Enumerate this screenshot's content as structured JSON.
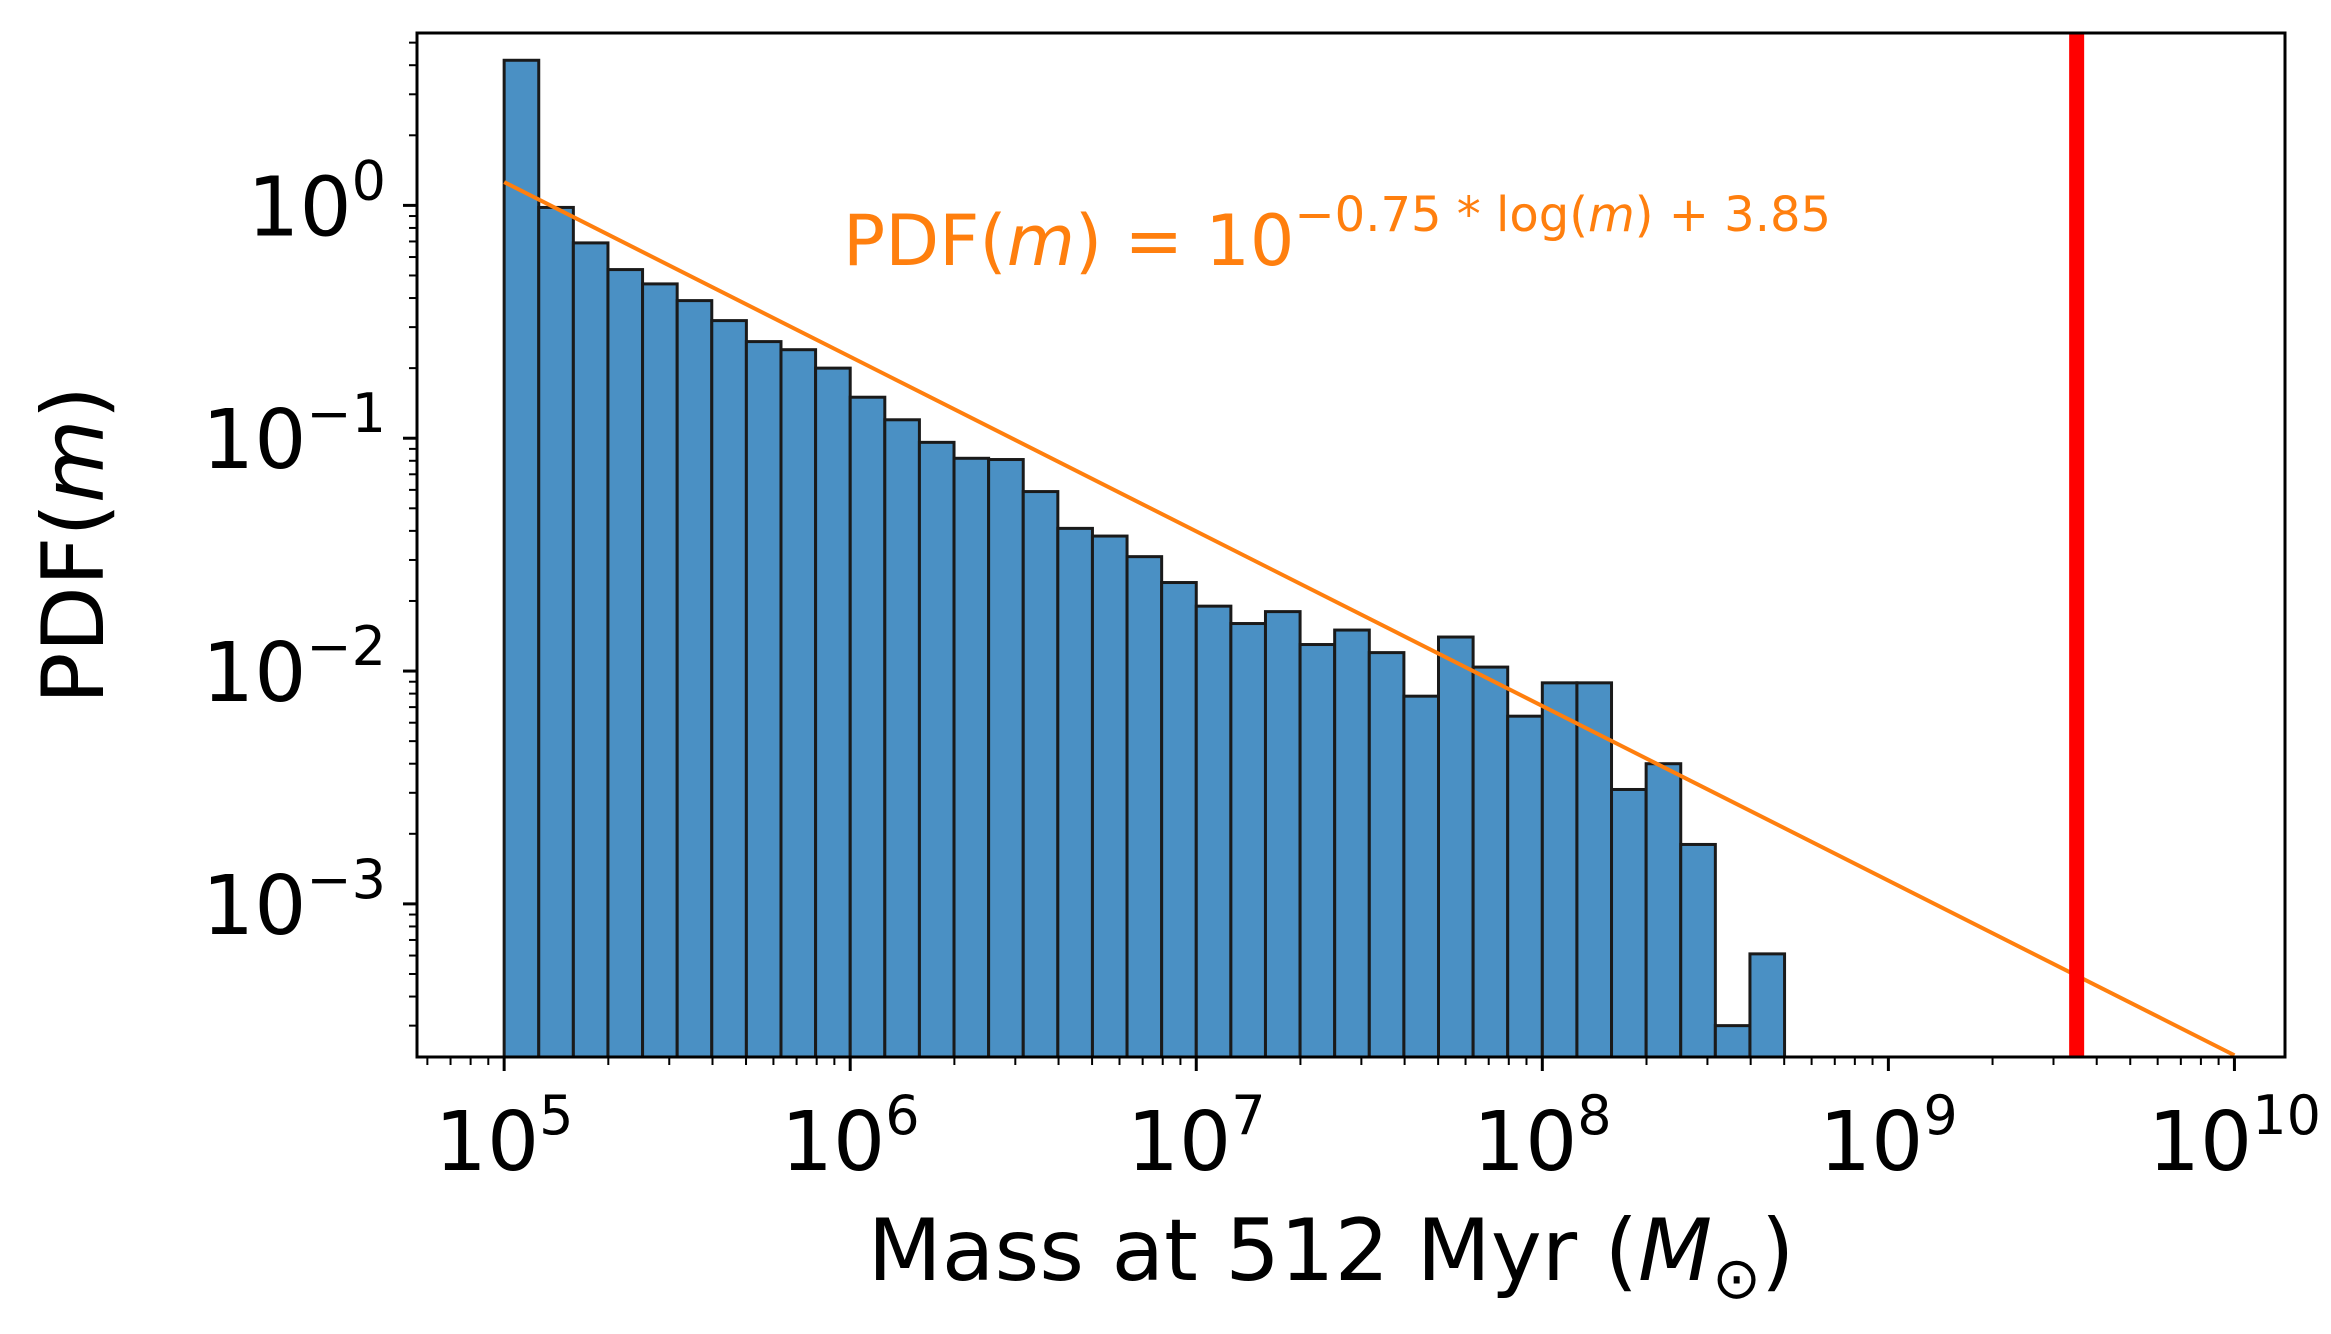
{
  "chart_data": {
    "type": "bar",
    "title": "",
    "xlabel": "Mass at 512 Myr (M⊙)",
    "xlabel_parts": {
      "main": "Mass at 512 Myr (",
      "symbol": "M",
      "subscript": "⊙",
      "close": ")"
    },
    "ylabel": "PDF(m)",
    "ylabel_parts": {
      "main": "PDF(",
      "var": "m",
      "close": ")"
    },
    "x_scale": "log",
    "y_scale": "log",
    "xlim": [
      56000,
      14000000000
    ],
    "ylim": [
      0.00022,
      5.5
    ],
    "grid": false,
    "x_ticks": [
      {
        "value": 100000,
        "base": "10",
        "exp": "5"
      },
      {
        "value": 1000000,
        "base": "10",
        "exp": "6"
      },
      {
        "value": 10000000,
        "base": "10",
        "exp": "7"
      },
      {
        "value": 100000000,
        "base": "10",
        "exp": "8"
      },
      {
        "value": 1000000000,
        "base": "10",
        "exp": "9"
      },
      {
        "value": 10000000000,
        "base": "10",
        "exp": "10"
      }
    ],
    "y_ticks": [
      {
        "value": 1,
        "base": "10",
        "exp": "0"
      },
      {
        "value": 0.1,
        "base": "10",
        "exp": "−1"
      },
      {
        "value": 0.01,
        "base": "10",
        "exp": "−2"
      },
      {
        "value": 0.001,
        "base": "10",
        "exp": "−3"
      }
    ],
    "histogram": {
      "log_bin_start": 5.0,
      "log_bin_width": 0.1,
      "color": "#4a90c4",
      "edge_color": "#1a1a1a",
      "values": [
        4.2,
        0.98,
        0.69,
        0.53,
        0.46,
        0.39,
        0.32,
        0.26,
        0.24,
        0.2,
        0.15,
        0.12,
        0.096,
        0.082,
        0.081,
        0.059,
        0.041,
        0.038,
        0.031,
        0.024,
        0.019,
        0.016,
        0.018,
        0.013,
        0.015,
        0.012,
        0.0078,
        0.014,
        0.0104,
        0.0064,
        0.0089,
        0.0089,
        0.0031,
        0.004,
        0.0018,
        0.0003,
        0.00061
      ]
    },
    "fit_line": {
      "label": "PDF(m) = 10^(−0.75 * log(m) + 3.85)",
      "slope": -0.75,
      "intercept": 3.85,
      "x_range": [
        100000,
        10000000000
      ],
      "color": "#ff7f0e"
    },
    "annotation": {
      "main": "PDF(",
      "var": "m",
      "rest": ") = 10",
      "exponent": "−0.75 * log(",
      "exponent_var": "m",
      "exponent_end": ") + 3.85",
      "color": "#ff7f0e"
    },
    "vline": {
      "x": 3500000000,
      "color": "#ff0000"
    }
  }
}
